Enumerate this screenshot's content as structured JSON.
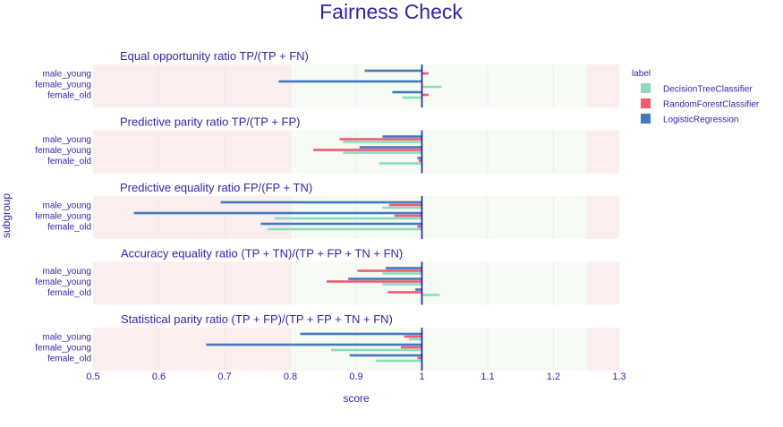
{
  "chart_data": {
    "type": "bar",
    "orientation": "horizontal",
    "title": "Fairness Check",
    "xlabel": "score",
    "ylabel": "subgroup",
    "xlim": [
      0.5,
      1.3
    ],
    "xticks": [
      "0.5",
      "0.6",
      "0.7",
      "0.8",
      "0.9",
      "1",
      "1.1",
      "1.2",
      "1.3"
    ],
    "xtick_values": [
      0.5,
      0.6,
      0.7,
      0.8,
      0.9,
      1.0,
      1.1,
      1.2,
      1.3
    ],
    "fair_range": [
      0.8,
      1.25
    ],
    "reference_line": 1.0,
    "legend": {
      "title": "label",
      "position": "top-right",
      "entries": [
        {
          "name": "DecisionTreeClassifier",
          "color": "#8bdcbe"
        },
        {
          "name": "RandomForestClassifier",
          "color": "#f05a71"
        },
        {
          "name": "LogisticRegression",
          "color": "#4378bf"
        }
      ]
    },
    "categories": [
      "male_young",
      "female_young",
      "female_old"
    ],
    "panels": [
      {
        "metric": "Equal opportunity ratio",
        "formula": "TP/(TP + FN)",
        "series": [
          {
            "name": "DecisionTreeClassifier",
            "values": [
              1.0,
              1.03,
              0.97
            ]
          },
          {
            "name": "RandomForestClassifier",
            "values": [
              1.01,
              1.0,
              1.01
            ]
          },
          {
            "name": "LogisticRegression",
            "values": [
              0.913,
              0.782,
              0.955
            ]
          }
        ]
      },
      {
        "metric": "Predictive parity ratio",
        "formula": "TP/(TP + FP)",
        "series": [
          {
            "name": "DecisionTreeClassifier",
            "values": [
              0.88,
              0.88,
              0.935
            ]
          },
          {
            "name": "RandomForestClassifier",
            "values": [
              0.875,
              0.835,
              0.995
            ]
          },
          {
            "name": "LogisticRegression",
            "values": [
              0.94,
              0.905,
              0.993
            ]
          }
        ]
      },
      {
        "metric": "Predictive equality ratio",
        "formula": "FP/(FP + TN)",
        "series": [
          {
            "name": "DecisionTreeClassifier",
            "values": [
              0.94,
              0.776,
              0.765
            ]
          },
          {
            "name": "RandomForestClassifier",
            "values": [
              0.95,
              0.958,
              0.993
            ]
          },
          {
            "name": "LogisticRegression",
            "values": [
              0.694,
              0.562,
              0.755
            ]
          }
        ]
      },
      {
        "metric": "Accuracy equality ratio",
        "formula": "(TP + TN)/(TP + FP + TN + FN)",
        "series": [
          {
            "name": "DecisionTreeClassifier",
            "values": [
              0.94,
              0.94,
              1.027
            ]
          },
          {
            "name": "RandomForestClassifier",
            "values": [
              0.902,
              0.855,
              0.948
            ]
          },
          {
            "name": "LogisticRegression",
            "values": [
              0.945,
              0.888,
              0.99
            ]
          }
        ]
      },
      {
        "metric": "Statistical parity ratio",
        "formula": "(TP + FP)/(TP + FP + TN + FN)",
        "series": [
          {
            "name": "DecisionTreeClassifier",
            "values": [
              0.98,
              0.862,
              0.93
            ]
          },
          {
            "name": "RandomForestClassifier",
            "values": [
              0.973,
              0.968,
              0.993
            ]
          },
          {
            "name": "LogisticRegression",
            "values": [
              0.815,
              0.672,
              0.89
            ]
          }
        ]
      }
    ]
  }
}
